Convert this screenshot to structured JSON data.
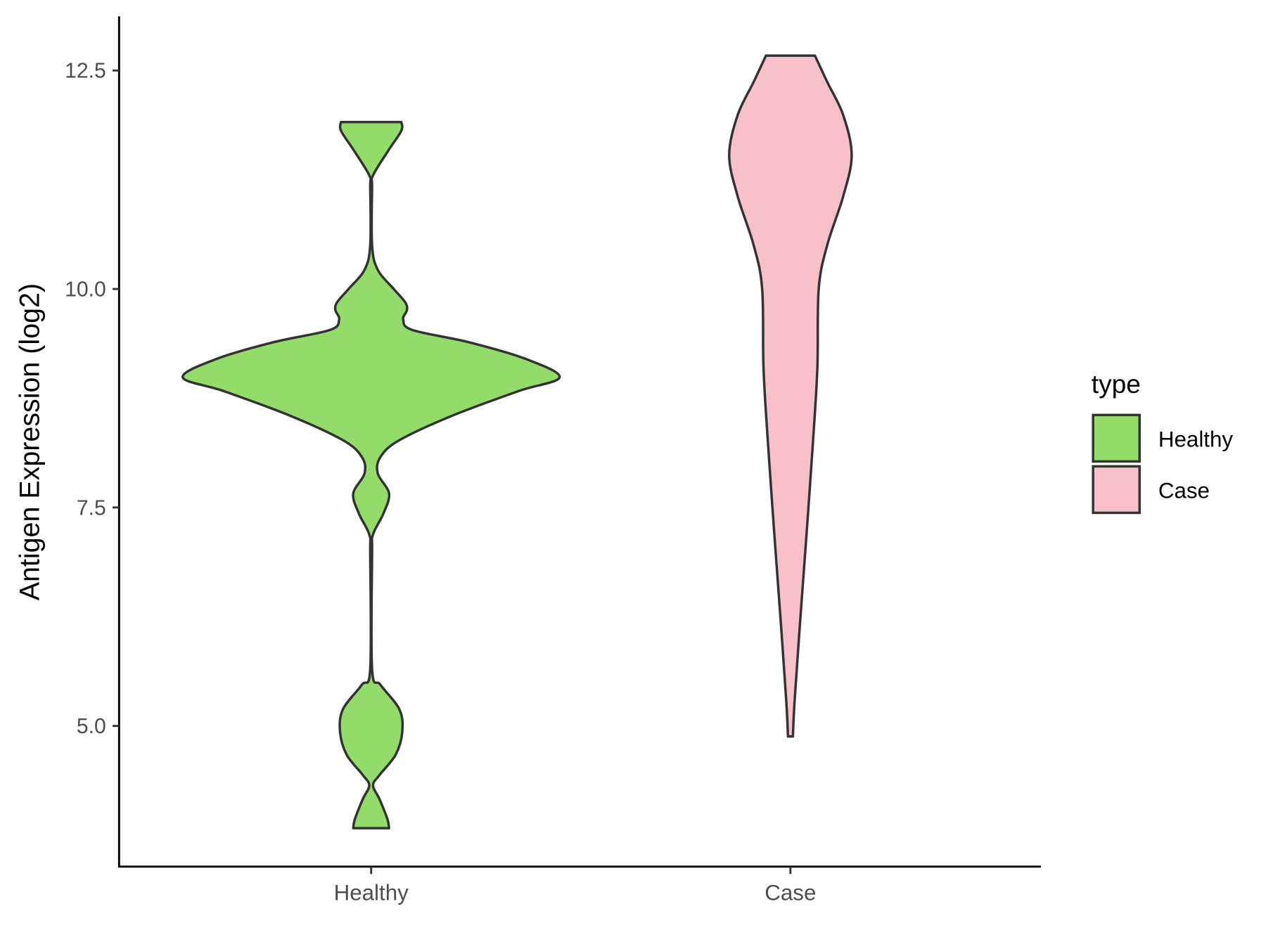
{
  "chart_data": {
    "type": "violin",
    "title": "",
    "xlabel": "",
    "ylabel": "Antigen Expression (log2)",
    "ylim": [
      3.39,
      13.12
    ],
    "yticks": [
      5.0,
      7.5,
      10.0,
      12.5
    ],
    "ytick_labels": [
      "5.0",
      "7.5",
      "10.0",
      "12.5"
    ],
    "categories": [
      "Healthy",
      "Case"
    ],
    "grid": false,
    "legend": {
      "title": "type",
      "position": "right",
      "entries": [
        "Healthy",
        "Case"
      ]
    },
    "series": [
      {
        "name": "Healthy",
        "color": "#93DC6A",
        "profile": [
          [
            11.91,
            0.16
          ],
          [
            11.81,
            0.16
          ],
          [
            11.58,
            0.09
          ],
          [
            11.3,
            0.01
          ],
          [
            11.16,
            0.005
          ],
          [
            10.5,
            0.005
          ],
          [
            10.22,
            0.035
          ],
          [
            10.0,
            0.12
          ],
          [
            9.85,
            0.18
          ],
          [
            9.76,
            0.19
          ],
          [
            9.65,
            0.17
          ],
          [
            9.53,
            0.22
          ],
          [
            9.39,
            0.52
          ],
          [
            9.2,
            0.82
          ],
          [
            8.99,
            1.0
          ],
          [
            8.83,
            0.78
          ],
          [
            8.55,
            0.43
          ],
          [
            8.27,
            0.15
          ],
          [
            8.08,
            0.05
          ],
          [
            7.89,
            0.035
          ],
          [
            7.66,
            0.095
          ],
          [
            7.43,
            0.065
          ],
          [
            7.19,
            0.01
          ],
          [
            6.96,
            0.005
          ],
          [
            5.65,
            0.005
          ],
          [
            5.47,
            0.05
          ],
          [
            5.19,
            0.15
          ],
          [
            4.93,
            0.165
          ],
          [
            4.67,
            0.13
          ],
          [
            4.44,
            0.045
          ],
          [
            4.32,
            0.01
          ],
          [
            4.16,
            0.045
          ],
          [
            3.93,
            0.087
          ],
          [
            3.83,
            0.095
          ]
        ]
      },
      {
        "name": "Case",
        "color": "#F7C0CB",
        "profile": [
          [
            12.67,
            0.13
          ],
          [
            12.37,
            0.195
          ],
          [
            11.99,
            0.28
          ],
          [
            11.53,
            0.325
          ],
          [
            11.06,
            0.28
          ],
          [
            10.5,
            0.195
          ],
          [
            10.0,
            0.15
          ],
          [
            9.1,
            0.143
          ],
          [
            8.26,
            0.12
          ],
          [
            7.24,
            0.087
          ],
          [
            6.21,
            0.052
          ],
          [
            5.28,
            0.022
          ],
          [
            4.88,
            0.013
          ]
        ]
      }
    ]
  }
}
